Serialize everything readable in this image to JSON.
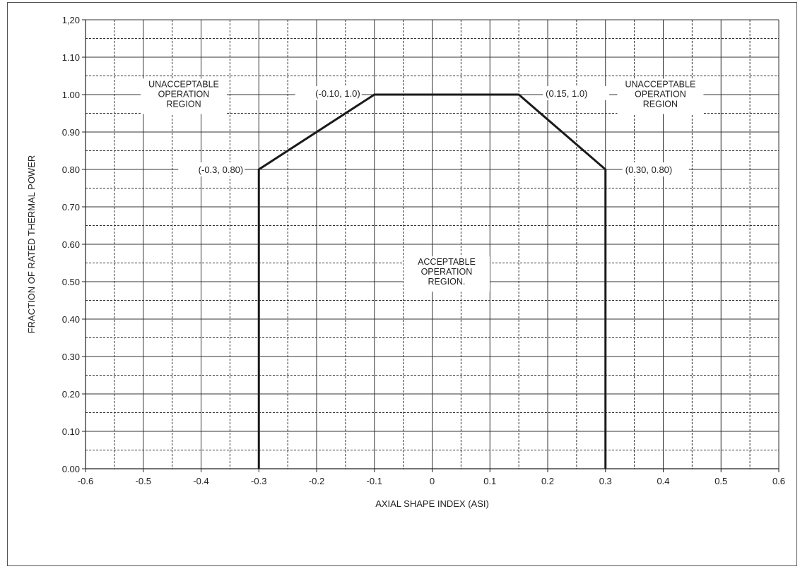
{
  "chart_data": {
    "type": "line",
    "title": "",
    "xlabel": "AXIAL SHAPE INDEX (ASI)",
    "ylabel": "FRACTION OF RATED THERMAL POWER",
    "xlim": [
      -0.6,
      0.6
    ],
    "ylim": [
      0.0,
      1.2
    ],
    "grid": true,
    "legend": "none",
    "x_ticks": [
      "-0.6",
      "-0.5",
      "-0.4",
      "-0.3",
      "-0.2",
      "-0.1",
      "0",
      "0.1",
      "0.2",
      "0.3",
      "0.4",
      "0.5",
      "0.6"
    ],
    "y_ticks": [
      "0.00",
      "0.10",
      "0.20",
      "0.30",
      "0.40",
      "0.50",
      "0.60",
      "0.70",
      "0.80",
      "0.90",
      "1.00",
      "1.10",
      "1,20"
    ],
    "series": [
      {
        "x": [
          -0.3,
          -0.3,
          -0.1,
          0.15,
          0.3,
          0.3
        ],
        "y": [
          0.0,
          0.8,
          1.0,
          1.0,
          0.8,
          0.0
        ]
      }
    ],
    "annotations": [
      {
        "text": "(-0.3, 0.80)",
        "x": -0.3,
        "y": 0.8
      },
      {
        "text": "(-0.10, 1.0)",
        "x": -0.1,
        "y": 1.0
      },
      {
        "text": "(0.15, 1.0)",
        "x": 0.15,
        "y": 1.0
      },
      {
        "text": "(0.30, 0.80)",
        "x": 0.3,
        "y": 0.8
      }
    ],
    "regions": [
      {
        "lines": [
          "UNACCEPTABLE",
          "OPERATION",
          "REGION"
        ]
      },
      {
        "lines": [
          "UNACCEPTABLE",
          "OPERATION",
          "REGION"
        ]
      },
      {
        "lines": [
          "ACCEPTABLE",
          "OPERATION",
          "REGION."
        ]
      }
    ],
    "colors": {
      "line": "#1a1a1a",
      "grid": "#333333",
      "background": "#ffffff"
    }
  }
}
